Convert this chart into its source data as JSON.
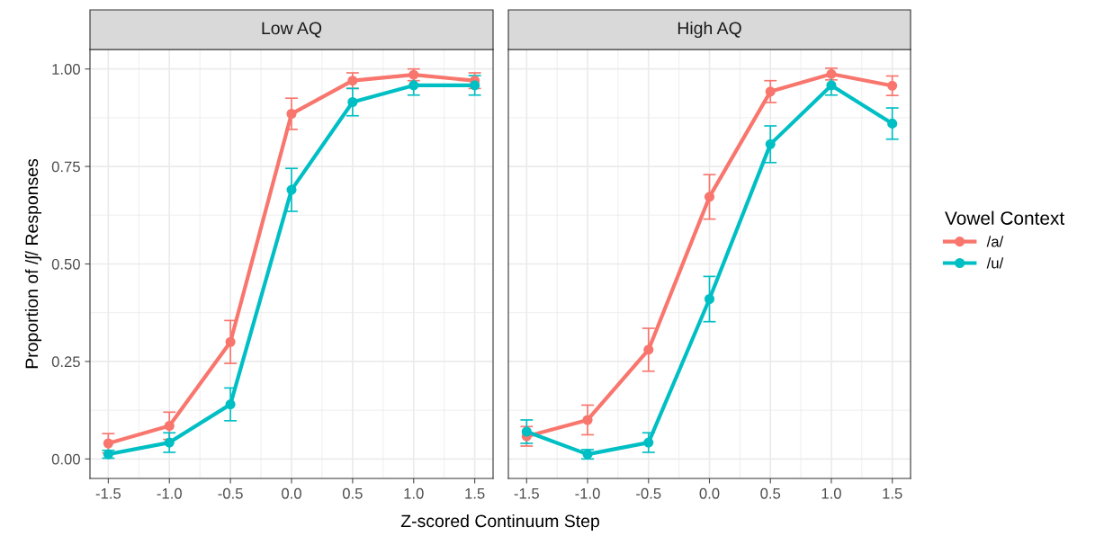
{
  "chart_data": [
    {
      "type": "line",
      "title": "Low AQ",
      "xlabel": "Z-scored Continuum Step",
      "ylabel": "Proportion of /ʃ/ Responses",
      "x": [
        -1.5,
        -1.0,
        -0.5,
        0.0,
        0.5,
        1.0,
        1.5
      ],
      "xlim": [
        -1.65,
        1.65
      ],
      "xticks": [
        {
          "value": -1.5,
          "label": "-1.5"
        },
        {
          "value": -1.0,
          "label": "-1.0"
        },
        {
          "value": -0.5,
          "label": "-0.5"
        },
        {
          "value": 0.0,
          "label": "0.0"
        },
        {
          "value": 0.5,
          "label": "0.5"
        },
        {
          "value": 1.0,
          "label": "1.0"
        },
        {
          "value": 1.5,
          "label": "1.5"
        }
      ],
      "ylim": [
        -0.05,
        1.05
      ],
      "yticks": [
        {
          "value": 0,
          "label": "0.00"
        },
        {
          "value": 0.25,
          "label": "0.25"
        },
        {
          "value": 0.5,
          "label": "0.50"
        },
        {
          "value": 0.75,
          "label": "0.75"
        },
        {
          "value": 1.0,
          "label": "1.00"
        }
      ],
      "grid": true,
      "marker": "circle",
      "line_style": "solid",
      "legend": "right",
      "legend_title": "Vowel Context",
      "series": [
        {
          "name": "/a/",
          "color": "#f8766d",
          "values": [
            0.04,
            0.085,
            0.3,
            0.885,
            0.97,
            0.985,
            0.97
          ],
          "errors": [
            0.025,
            0.035,
            0.055,
            0.04,
            0.02,
            0.015,
            0.02
          ]
        },
        {
          "name": "/u/",
          "color": "#00bfc4",
          "values": [
            0.012,
            0.042,
            0.14,
            0.69,
            0.915,
            0.958,
            0.958
          ],
          "errors": [
            0.01,
            0.025,
            0.042,
            0.055,
            0.035,
            0.025,
            0.025
          ]
        }
      ]
    },
    {
      "type": "line",
      "title": "High AQ",
      "x": [
        -1.5,
        -1.0,
        -0.5,
        0.0,
        0.5,
        1.0,
        1.5
      ],
      "xlim": [
        -1.65,
        1.65
      ],
      "xticks": [
        {
          "value": -1.5,
          "label": "-1.5"
        },
        {
          "value": -1.0,
          "label": "-1.0"
        },
        {
          "value": -0.5,
          "label": "-0.5"
        },
        {
          "value": 0.0,
          "label": "0.0"
        },
        {
          "value": 0.5,
          "label": "0.5"
        },
        {
          "value": 1.0,
          "label": "1.0"
        },
        {
          "value": 1.5,
          "label": "1.5"
        }
      ],
      "ylim": [
        -0.05,
        1.05
      ],
      "yticks": [
        0,
        0.25,
        0.5,
        0.75,
        1.0
      ],
      "tick_labels": "x",
      "grid": true,
      "marker": "circle",
      "line_style": "solid",
      "series": [
        {
          "color": "#f8766d",
          "values": [
            0.058,
            0.1,
            0.28,
            0.672,
            0.942,
            0.987,
            0.957
          ],
          "errors": [
            0.025,
            0.038,
            0.055,
            0.057,
            0.028,
            0.015,
            0.025
          ]
        },
        {
          "color": "#00bfc4",
          "values": [
            0.07,
            0.012,
            0.042,
            0.41,
            0.807,
            0.958,
            0.86
          ],
          "errors": [
            0.03,
            0.012,
            0.025,
            0.058,
            0.047,
            0.025,
            0.04
          ]
        }
      ]
    }
  ]
}
